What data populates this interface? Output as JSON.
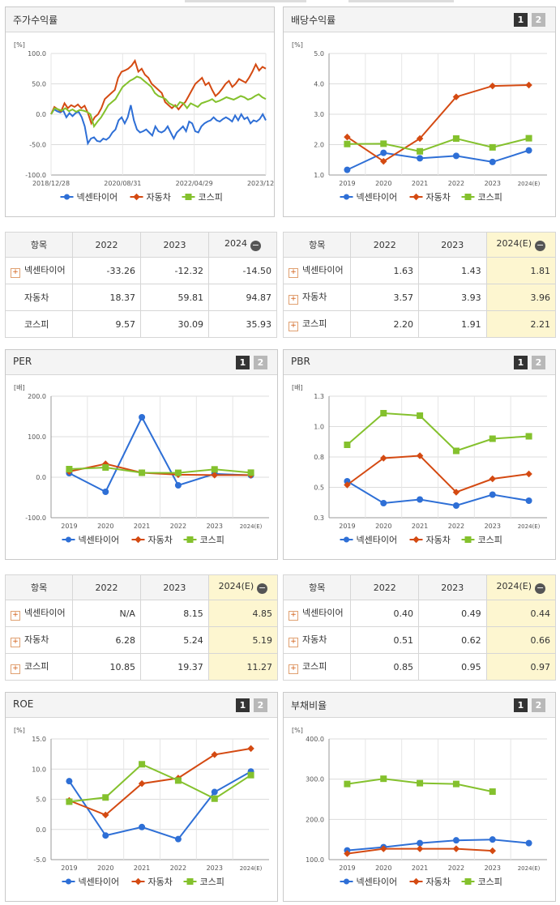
{
  "legend": [
    "넥센타이어",
    "자동차",
    "코스피"
  ],
  "colors": [
    "#2e6fd6",
    "#d44a12",
    "#84c12d"
  ],
  "tables": {
    "header_label": "항목",
    "price": {
      "cols": [
        "2022",
        "2023",
        "2024"
      ],
      "rows": [
        {
          "name": "넥센타이어",
          "vals": [
            "-33.26",
            "-12.32",
            "-14.50"
          ]
        },
        {
          "name": "자동차",
          "vals": [
            "18.37",
            "59.81",
            "94.87"
          ]
        },
        {
          "name": "코스피",
          "vals": [
            "9.57",
            "30.09",
            "35.93"
          ]
        }
      ]
    },
    "dividend": {
      "cols": [
        "2022",
        "2023",
        "2024(E)"
      ],
      "rows": [
        {
          "name": "넥센타이어",
          "vals": [
            "1.63",
            "1.43",
            "1.81"
          ]
        },
        {
          "name": "자동차",
          "vals": [
            "3.57",
            "3.93",
            "3.96"
          ]
        },
        {
          "name": "코스피",
          "vals": [
            "2.20",
            "1.91",
            "2.21"
          ]
        }
      ]
    },
    "per": {
      "cols": [
        "2022",
        "2023",
        "2024(E)"
      ],
      "rows": [
        {
          "name": "넥센타이어",
          "vals": [
            "N/A",
            "8.15",
            "4.85"
          ]
        },
        {
          "name": "자동차",
          "vals": [
            "6.28",
            "5.24",
            "5.19"
          ]
        },
        {
          "name": "코스피",
          "vals": [
            "10.85",
            "19.37",
            "11.27"
          ]
        }
      ]
    },
    "pbr": {
      "cols": [
        "2022",
        "2023",
        "2024(E)"
      ],
      "rows": [
        {
          "name": "넥센타이어",
          "vals": [
            "0.40",
            "0.49",
            "0.44"
          ]
        },
        {
          "name": "자동차",
          "vals": [
            "0.51",
            "0.62",
            "0.66"
          ]
        },
        {
          "name": "코스피",
          "vals": [
            "0.85",
            "0.95",
            "0.97"
          ]
        }
      ]
    }
  },
  "chart_data": [
    {
      "id": "price",
      "title": "주가수익률",
      "type": "line",
      "unit": "[%]",
      "yticks": [
        "100.0",
        "50.0",
        "0.0",
        "-50.0",
        "-100.0"
      ],
      "ylim": [
        -100,
        100
      ],
      "xticks": [
        "2018/12/28",
        "2020/08/31",
        "2022/04/29",
        "2023/12/28"
      ],
      "series": [
        {
          "name": "넥센타이어",
          "values": [
            0,
            8,
            5,
            3,
            6,
            -5,
            2,
            -3,
            2,
            4,
            -5,
            -20,
            -48,
            -40,
            -38,
            -44,
            -45,
            -40,
            -42,
            -38,
            -30,
            -25,
            -10,
            -5,
            -15,
            -5,
            15,
            -10,
            -25,
            -30,
            -28,
            -25,
            -30,
            -35,
            -20,
            -28,
            -30,
            -27,
            -20,
            -30,
            -40,
            -30,
            -25,
            -20,
            -28,
            -12,
            -15,
            -28,
            -30,
            -20,
            -15,
            -12,
            -10,
            -5,
            -10,
            -12,
            -8,
            -5,
            -8,
            -12,
            -2,
            -10,
            0,
            -8,
            -5,
            -15,
            -10,
            -12,
            -8,
            0,
            -10
          ]
        },
        {
          "name": "자동차",
          "values": [
            0,
            12,
            8,
            5,
            18,
            10,
            15,
            12,
            16,
            10,
            14,
            2,
            -15,
            -5,
            0,
            10,
            25,
            30,
            35,
            40,
            60,
            70,
            72,
            75,
            80,
            88,
            70,
            75,
            65,
            60,
            50,
            45,
            40,
            35,
            20,
            15,
            10,
            15,
            8,
            15,
            20,
            30,
            40,
            50,
            55,
            60,
            48,
            52,
            40,
            30,
            35,
            42,
            50,
            55,
            45,
            50,
            58,
            55,
            52,
            60,
            70,
            82,
            72,
            78,
            75
          ]
        },
        {
          "name": "코스피",
          "values": [
            0,
            10,
            8,
            6,
            10,
            5,
            8,
            4,
            7,
            6,
            4,
            0,
            -20,
            -12,
            -5,
            5,
            15,
            20,
            25,
            35,
            45,
            50,
            55,
            58,
            62,
            60,
            55,
            50,
            45,
            35,
            30,
            28,
            25,
            18,
            15,
            12,
            20,
            18,
            10,
            18,
            15,
            12,
            18,
            20,
            22,
            25,
            20,
            22,
            25,
            28,
            26,
            24,
            27,
            30,
            28,
            24,
            26,
            30,
            33,
            28,
            25
          ]
        }
      ]
    },
    {
      "id": "dividend",
      "title": "배당수익률",
      "type": "line",
      "unit": "[%]",
      "yticks": [
        "5.0",
        "4.0",
        "3.0",
        "2.0",
        "1.0"
      ],
      "ylim": [
        1,
        5
      ],
      "xticks": [
        "2019",
        "2020",
        "2021",
        "2022",
        "2023",
        "2024(E)"
      ],
      "series": [
        {
          "name": "넥센타이어",
          "values": [
            1.17,
            1.73,
            1.55,
            1.63,
            1.43,
            1.81
          ]
        },
        {
          "name": "자동차",
          "values": [
            2.25,
            1.45,
            2.2,
            3.57,
            3.93,
            3.96
          ]
        },
        {
          "name": "코스피",
          "values": [
            2.02,
            2.03,
            1.78,
            2.2,
            1.91,
            2.21
          ]
        }
      ]
    },
    {
      "id": "per",
      "title": "PER",
      "type": "line",
      "unit": "[배]",
      "yticks": [
        "200.0",
        "100.0",
        "0.0",
        "-100.0"
      ],
      "ylim": [
        -100,
        200
      ],
      "xticks": [
        "2019",
        "2020",
        "2021",
        "2022",
        "2023",
        "2024(E)"
      ],
      "series": [
        {
          "name": "넥센타이어",
          "values": [
            10,
            -36,
            148,
            -20,
            8.15,
            4.85
          ]
        },
        {
          "name": "자동차",
          "values": [
            14,
            33,
            11,
            6.28,
            5.24,
            5.19
          ]
        },
        {
          "name": "코스피",
          "values": [
            20,
            24,
            11,
            10.85,
            19.37,
            11.27
          ]
        }
      ]
    },
    {
      "id": "pbr",
      "title": "PBR",
      "type": "line",
      "unit": "[배]",
      "yticks": [
        "1.3",
        "1.0",
        "0.8",
        "0.5",
        "0.3"
      ],
      "ylim": [
        0.3,
        1.3
      ],
      "xticks": [
        "2019",
        "2020",
        "2021",
        "2022",
        "2023",
        "2024(E)"
      ],
      "series": [
        {
          "name": "넥센타이어",
          "values": [
            0.6,
            0.42,
            0.45,
            0.4,
            0.49,
            0.44
          ]
        },
        {
          "name": "자동차",
          "values": [
            0.57,
            0.79,
            0.81,
            0.51,
            0.62,
            0.66
          ]
        },
        {
          "name": "코스피",
          "values": [
            0.9,
            1.16,
            1.14,
            0.85,
            0.95,
            0.97
          ]
        }
      ]
    },
    {
      "id": "roe",
      "title": "ROE",
      "type": "line",
      "unit": "[%]",
      "yticks": [
        "15.0",
        "10.0",
        "5.0",
        "0.0",
        "-5.0"
      ],
      "ylim": [
        -5,
        15
      ],
      "xticks": [
        "2019",
        "2020",
        "2021",
        "2022",
        "2023",
        "2024(E)"
      ],
      "series": [
        {
          "name": "넥센타이어",
          "values": [
            8.0,
            -1.0,
            0.4,
            -1.6,
            6.2,
            9.6
          ]
        },
        {
          "name": "자동차",
          "values": [
            4.8,
            2.4,
            7.6,
            8.5,
            12.4,
            13.4
          ]
        },
        {
          "name": "코스피",
          "values": [
            4.6,
            5.3,
            10.8,
            8.1,
            5.1,
            9.0
          ]
        }
      ]
    },
    {
      "id": "debt",
      "title": "부채비율",
      "type": "line",
      "unit": "[%]",
      "yticks": [
        "400.0",
        "300.0",
        "200.0",
        "100.0"
      ],
      "ylim": [
        100,
        400
      ],
      "xticks": [
        "2019",
        "2020",
        "2021",
        "2022",
        "2023",
        "2024(E)"
      ],
      "series": [
        {
          "name": "넥센타이어",
          "values": [
            123,
            131,
            141,
            148,
            150,
            141
          ]
        },
        {
          "name": "자동차",
          "values": [
            115,
            127,
            127,
            127,
            122,
            null
          ]
        },
        {
          "name": "코스피",
          "values": [
            288,
            301,
            290,
            288,
            269,
            null
          ]
        }
      ]
    }
  ]
}
